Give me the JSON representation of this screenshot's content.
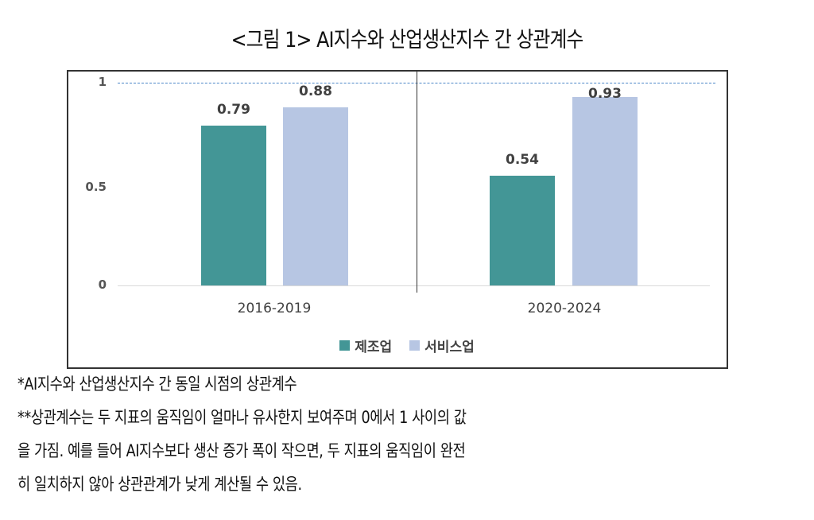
{
  "title": "<그림 1> AI지수와 산업생산지수 간 상관계수",
  "chart_data": {
    "type": "bar",
    "title": "<그림 1> AI지수와 산업생산지수 간 상관계수",
    "xlabel": "",
    "ylabel": "",
    "categories": [
      "2016-2019",
      "2020-2024"
    ],
    "series": [
      {
        "name": "제조업",
        "color": "#439696",
        "values": [
          0.79,
          0.54
        ]
      },
      {
        "name": "서비스업",
        "color": "#b7c6e3",
        "values": [
          0.88,
          0.93
        ]
      }
    ],
    "ylim": [
      0,
      1
    ],
    "yticks": [
      "0",
      "0.5",
      "1"
    ],
    "reference_line": {
      "value": 1,
      "style": "dashed",
      "color": "#4a86c8"
    },
    "grid": false,
    "legend_position": "bottom",
    "data_labels": [
      "0.79",
      "0.88",
      "0.54",
      "0.93"
    ]
  },
  "legend": [
    {
      "label": "제조업",
      "color": "#439696"
    },
    {
      "label": "서비스업",
      "color": "#b7c6e3"
    }
  ],
  "notes": [
    "*AI지수와 산업생산지수 간 동일 시점의 상관계수",
    "**상관계수는 두 지표의 움직임이 얼마나 유사한지 보여주며 0에서 1 사이의 값",
    "을 가짐. 예를 들어 AI지수보다 생산 증가 폭이 작으면, 두 지표의 움직임이 완전",
    "히 일치하지 않아 상관관계가 낮게 계산될 수 있음."
  ]
}
